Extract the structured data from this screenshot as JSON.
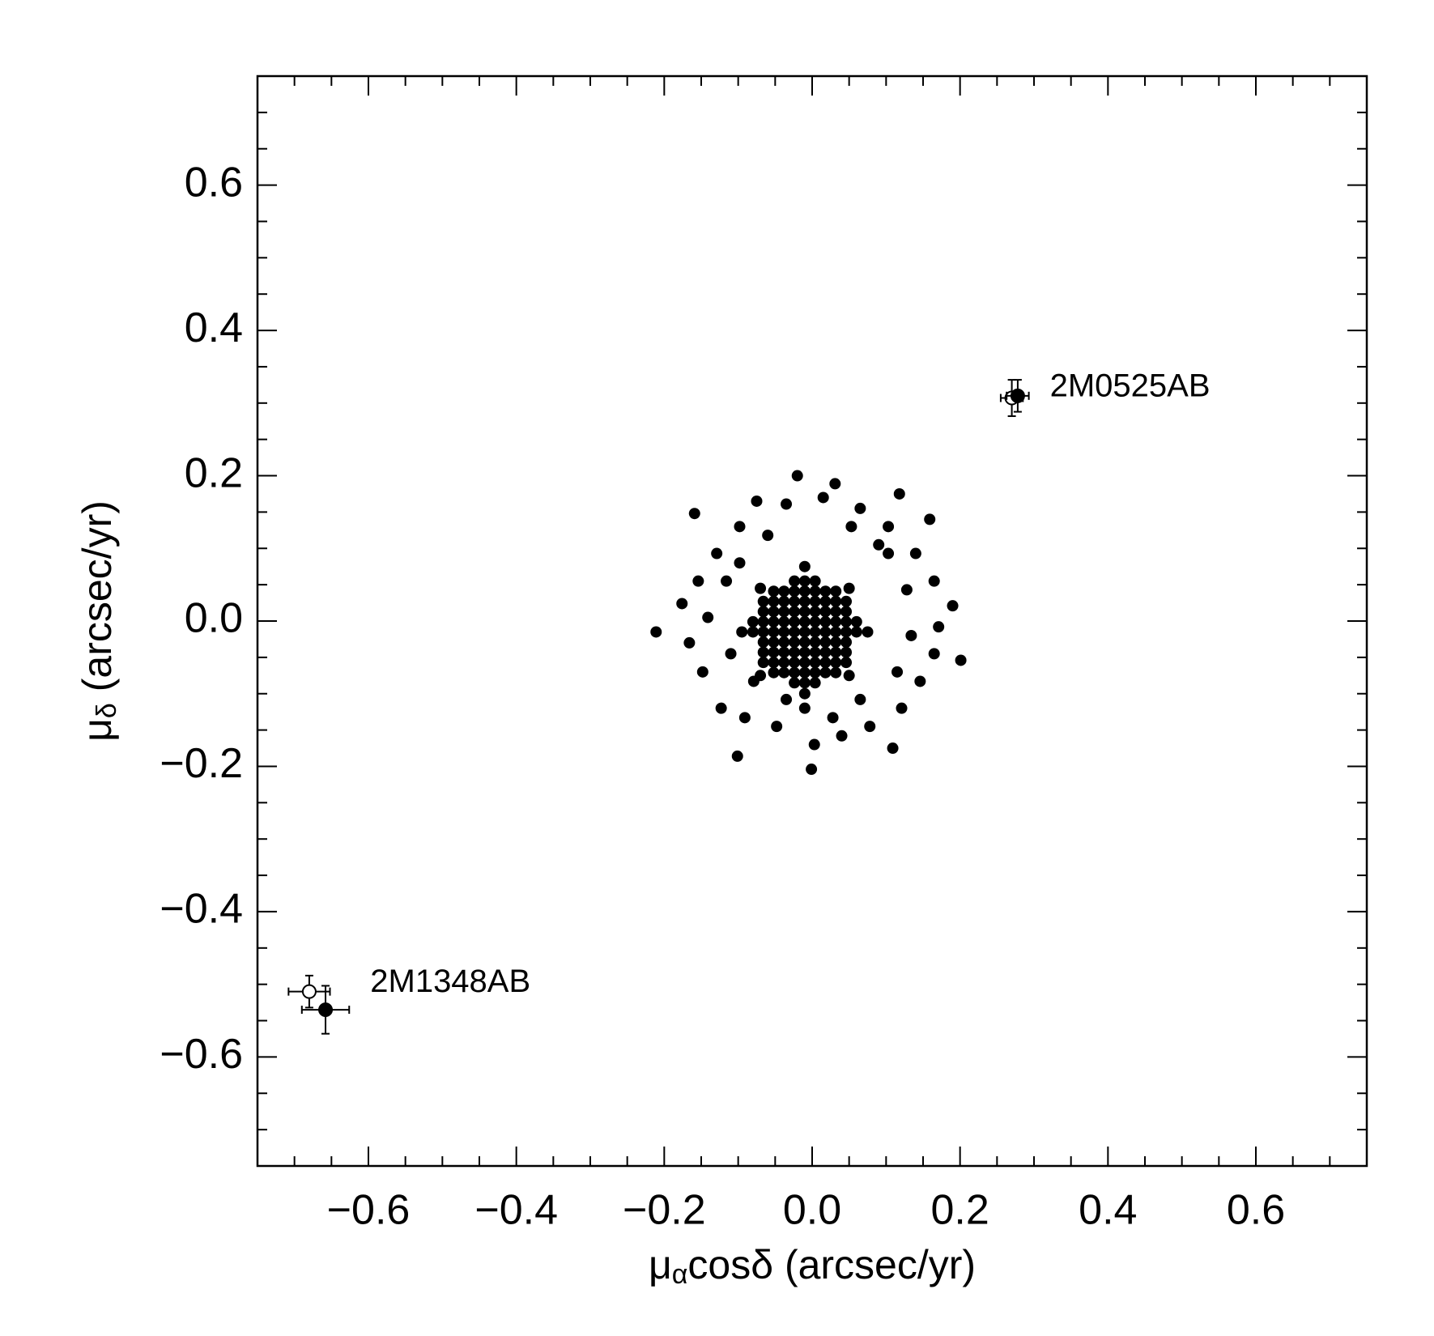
{
  "chart_data": {
    "type": "scatter",
    "xlabel": {
      "main": "μ",
      "sub": "α",
      "rest": "cosδ (arcsec/yr)"
    },
    "ylabel": {
      "main": "μ",
      "sub": "δ",
      "rest": " (arcsec/yr)"
    },
    "xlim": [
      -0.75,
      0.75
    ],
    "ylim": [
      -0.75,
      0.75
    ],
    "xticks": [
      {
        "value": -0.6,
        "label": "−0.6"
      },
      {
        "value": -0.4,
        "label": "−0.4"
      },
      {
        "value": -0.2,
        "label": "−0.2"
      },
      {
        "value": 0,
        "label": "0.0"
      },
      0.2,
      0.4,
      0.6
    ],
    "yticks": [
      {
        "value": -0.6,
        "label": "−0.6"
      },
      {
        "value": -0.4,
        "label": "−0.4"
      },
      {
        "value": -0.2,
        "label": "−0.2"
      },
      {
        "value": 0,
        "label": "0.0"
      },
      0.2,
      0.4,
      0.6
    ],
    "minorticks": [
      -0.7,
      -0.65,
      -0.55,
      -0.5,
      -0.45,
      -0.35,
      -0.3,
      -0.25,
      -0.15,
      -0.1,
      -0.05,
      0.05,
      0.1,
      0.15,
      0.25,
      0.3,
      0.35,
      0.45,
      0.5,
      0.55,
      0.65,
      0.7
    ],
    "color": "#000000",
    "x": [
      -0.024,
      -0.01,
      0.004,
      -0.052,
      -0.038,
      -0.024,
      -0.01,
      0.004,
      0.018,
      0.032,
      -0.066,
      -0.052,
      -0.038,
      -0.024,
      -0.01,
      0.004,
      0.018,
      0.032,
      0.046,
      -0.066,
      -0.052,
      -0.038,
      -0.024,
      -0.01,
      0.004,
      0.018,
      0.032,
      0.046,
      -0.066,
      -0.052,
      -0.038,
      -0.024,
      -0.01,
      0.004,
      0.018,
      0.032,
      0.046,
      -0.08,
      -0.066,
      -0.052,
      -0.038,
      -0.024,
      -0.01,
      0.004,
      0.018,
      0.032,
      0.046,
      0.06,
      -0.08,
      -0.066,
      -0.052,
      -0.038,
      -0.024,
      -0.01,
      0.004,
      0.018,
      0.032,
      0.046,
      0.06,
      -0.066,
      -0.052,
      -0.038,
      -0.024,
      -0.01,
      0.004,
      0.018,
      0.032,
      0.046,
      -0.066,
      -0.052,
      -0.038,
      -0.024,
      -0.01,
      0.004,
      0.018,
      0.032,
      0.046,
      -0.052,
      -0.038,
      -0.024,
      -0.01,
      0.004,
      0.018,
      0.032,
      -0.024,
      -0.01,
      0.004,
      -0.211,
      -0.159,
      -0.02,
      -0.001,
      -0.101,
      0.201,
      0.19,
      0.118,
      0.109,
      0.159,
      0.031,
      -0.075,
      -0.176,
      -0.166,
      -0.148,
      -0.123,
      -0.091,
      -0.048,
      0.003,
      0.04,
      0.078,
      0.121,
      0.146,
      0.165,
      0.171,
      0.165,
      0.14,
      0.103,
      0.065,
      0.015,
      -0.035,
      -0.098,
      -0.129,
      -0.154,
      -0.141,
      -0.11,
      -0.116,
      -0.098,
      -0.06,
      0.09,
      0.128,
      0.134,
      0.115,
      0.065,
      -0.035,
      -0.079,
      -0.01,
      0.028,
      0.103,
      0.053,
      -0.095,
      0.075,
      -0.01,
      -0.01,
      -0.07,
      0.05,
      -0.07,
      0.05
    ],
    "values": [
      -0.085,
      -0.085,
      -0.085,
      -0.071,
      -0.071,
      -0.071,
      -0.071,
      -0.071,
      -0.071,
      -0.071,
      -0.057,
      -0.057,
      -0.057,
      -0.057,
      -0.057,
      -0.057,
      -0.057,
      -0.057,
      -0.057,
      -0.043,
      -0.043,
      -0.043,
      -0.043,
      -0.043,
      -0.043,
      -0.043,
      -0.043,
      -0.043,
      -0.029,
      -0.029,
      -0.029,
      -0.029,
      -0.029,
      -0.029,
      -0.029,
      -0.029,
      -0.029,
      -0.015,
      -0.015,
      -0.015,
      -0.015,
      -0.015,
      -0.015,
      -0.015,
      -0.015,
      -0.015,
      -0.015,
      -0.015,
      -0.001,
      -0.001,
      -0.001,
      -0.001,
      -0.001,
      -0.001,
      -0.001,
      -0.001,
      -0.001,
      -0.001,
      -0.001,
      0.013,
      0.013,
      0.013,
      0.013,
      0.013,
      0.013,
      0.013,
      0.013,
      0.013,
      0.027,
      0.027,
      0.027,
      0.027,
      0.027,
      0.027,
      0.027,
      0.027,
      0.027,
      0.041,
      0.041,
      0.041,
      0.041,
      0.041,
      0.041,
      0.041,
      0.055,
      0.055,
      0.055,
      -0.015,
      0.148,
      0.2,
      -0.204,
      -0.186,
      -0.054,
      0.021,
      0.175,
      -0.175,
      0.14,
      0.189,
      0.165,
      0.024,
      -0.03,
      -0.07,
      -0.12,
      -0.133,
      -0.145,
      -0.17,
      -0.158,
      -0.145,
      -0.12,
      -0.083,
      -0.045,
      -0.008,
      0.055,
      0.093,
      0.13,
      0.155,
      0.17,
      0.161,
      0.13,
      0.093,
      0.055,
      0.005,
      -0.045,
      0.055,
      0.08,
      0.118,
      0.105,
      0.043,
      -0.02,
      -0.07,
      -0.108,
      -0.108,
      -0.083,
      -0.12,
      -0.133,
      0.093,
      0.13,
      -0.015,
      -0.015,
      0.075,
      -0.1,
      0.045,
      0.045,
      -0.075,
      -0.075
    ],
    "objects": [
      {
        "label": "2M0525AB",
        "points": [
          {
            "x": 0.27,
            "xerr": 0.015,
            "y": 0.307,
            "yerr": 0.025,
            "filled": false
          },
          {
            "x": 0.278,
            "xerr": 0.015,
            "y": 0.31,
            "yerr": 0.022,
            "filled": true
          }
        ]
      },
      {
        "label": "2M1348AB",
        "points": [
          {
            "x": -0.68,
            "xerr": 0.028,
            "y": -0.51,
            "yerr": 0.022,
            "filled": false
          },
          {
            "x": -0.658,
            "xerr": 0.032,
            "y": -0.535,
            "yerr": 0.033,
            "filled": true
          }
        ]
      }
    ]
  }
}
